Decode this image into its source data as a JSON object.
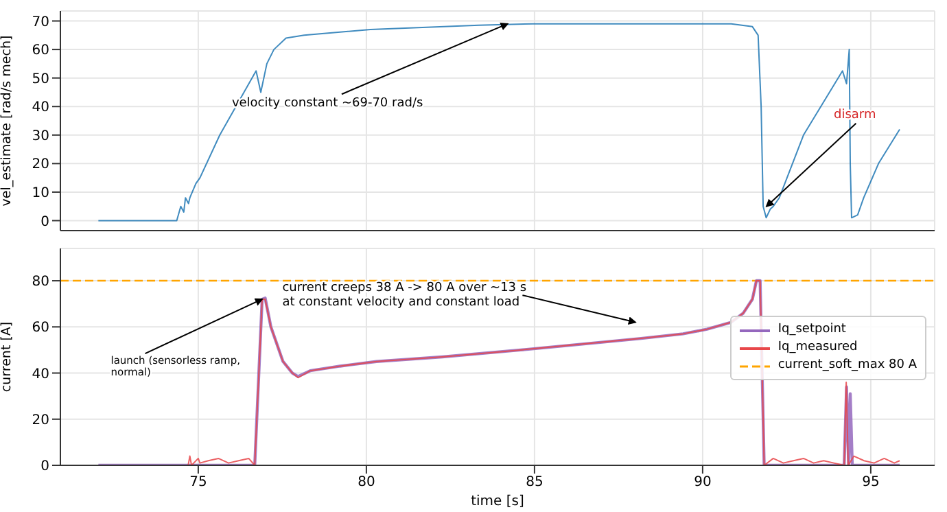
{
  "chart_data": [
    {
      "type": "line",
      "ylabel": "vel_estimate [rad/s mech]",
      "xlim": [
        70.9,
        96.9
      ],
      "xticks": [
        75,
        80,
        85,
        90,
        95
      ],
      "ylim": [
        -3.5,
        73.5
      ],
      "yticks": [
        0,
        10,
        20,
        30,
        40,
        50,
        60,
        70
      ],
      "grid": true,
      "tick_labels": "y",
      "legend": false,
      "series": [
        {
          "color": "#1f77b4",
          "x": [
            72.03,
            74.36,
            74.48,
            74.57,
            74.62,
            74.71,
            74.75,
            74.93,
            75.05,
            75.64,
            76.72,
            76.86,
            77.04,
            77.25,
            77.61,
            78.15,
            80.12,
            83.34,
            84.95,
            90.85,
            91.48,
            91.65,
            91.74,
            91.8,
            91.89,
            92.01,
            92.1,
            92.28,
            93.0,
            94.16,
            94.28,
            94.36,
            94.39,
            94.43,
            94.61,
            94.79,
            95.23,
            95.86
          ],
          "values": [
            0,
            0,
            5,
            3,
            8,
            6,
            8,
            13,
            15,
            30,
            52.5,
            45,
            55,
            60,
            64,
            65,
            67,
            68.5,
            69,
            69,
            68,
            65,
            40,
            5,
            1,
            4,
            5,
            8,
            30,
            52.5,
            48,
            60,
            20,
            1,
            2,
            8,
            20,
            32
          ]
        }
      ],
      "annotations": [
        {
          "text": "velocity constant ~69-70 rad/s",
          "x": 84.2,
          "y": 69
        },
        {
          "text": "disarm",
          "x": 91.9,
          "y": 5
        }
      ]
    },
    {
      "type": "line",
      "xlabel": "time [s]",
      "ylabel": "current [A]",
      "xlim": [
        70.9,
        96.9
      ],
      "xticks": [
        75,
        80,
        85,
        90,
        95
      ],
      "ylim": [
        0,
        94
      ],
      "yticks": [
        0,
        20,
        40,
        60,
        80
      ],
      "grid": true,
      "legend": "right",
      "series": [
        {
          "name": "Iq_setpoint",
          "color": "#9467bd",
          "x": [
            72.03,
            76.68,
            76.9,
            76.99,
            77.16,
            77.52,
            77.8,
            77.97,
            78.33,
            79.22,
            80.3,
            82.26,
            84.59,
            86.74,
            88.17,
            89.42,
            90.13,
            90.85,
            91.21,
            91.48,
            91.6,
            91.71,
            91.83,
            94.21,
            94.28,
            94.34,
            94.39,
            94.45,
            95.86
          ],
          "values": [
            0,
            0,
            72,
            72.5,
            60,
            45,
            40,
            38.5,
            41,
            43,
            45,
            47,
            50,
            53,
            55,
            57,
            59,
            62,
            66,
            72,
            80,
            80,
            0,
            0,
            34,
            0,
            31,
            0,
            0
          ]
        },
        {
          "name": "Iq_measured",
          "color": "#e8474a",
          "x": [
            72.03,
            74.7,
            74.75,
            74.8,
            75.0,
            75.05,
            75.3,
            75.6,
            75.9,
            76.2,
            76.5,
            76.68,
            76.9,
            76.99,
            77.16,
            77.52,
            77.8,
            77.97,
            78.33,
            79.22,
            80.3,
            82.26,
            84.59,
            86.74,
            88.17,
            89.42,
            90.13,
            90.85,
            91.21,
            91.48,
            91.6,
            91.71,
            91.83,
            92.1,
            92.4,
            92.7,
            93.0,
            93.3,
            93.6,
            93.9,
            94.21,
            94.27,
            94.33,
            94.5,
            94.8,
            95.1,
            95.4,
            95.7,
            95.86
          ],
          "values": [
            0,
            0,
            4,
            0,
            3,
            1,
            2,
            3,
            1,
            2,
            3,
            0,
            72,
            72,
            60,
            45,
            40,
            38,
            41,
            43,
            45,
            47,
            50,
            53,
            55,
            57,
            59,
            62,
            66,
            72,
            80,
            80,
            0,
            3,
            1,
            2,
            3,
            1,
            2,
            1,
            0,
            36,
            0,
            4,
            2,
            1,
            3,
            1,
            2
          ]
        }
      ],
      "ref_lines": [
        {
          "axis": "y",
          "value": 80,
          "label": "current_soft_max 80 A",
          "color": "#ffa500",
          "line_style": "dashed"
        }
      ],
      "annotations": [
        "current creeps 38 A -> 80 A over ~13 s\nat constant velocity and constant load",
        {
          "text": "launch (sensorless ramp,\nnormal)",
          "x": 76.9,
          "y": 72
        }
      ]
    }
  ]
}
